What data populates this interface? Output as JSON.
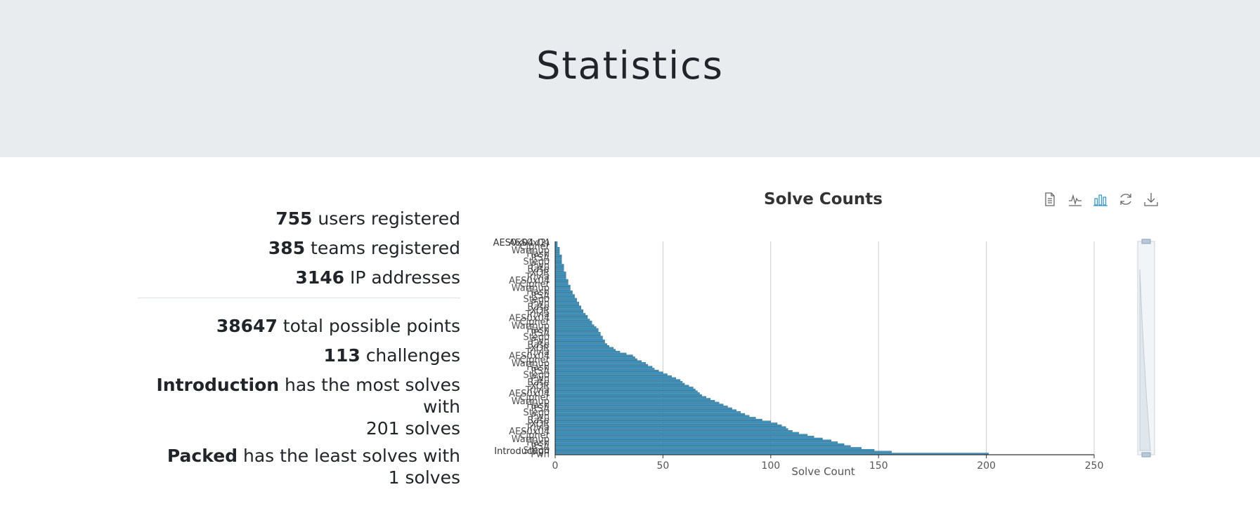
{
  "header": {
    "title": "Statistics"
  },
  "stats": {
    "users": {
      "value": "755",
      "text": "users registered"
    },
    "teams": {
      "value": "385",
      "text": "teams registered"
    },
    "ips": {
      "value": "3146",
      "text": "IP addresses"
    },
    "points": {
      "value": "38647",
      "text": "total possible points"
    },
    "challenges": {
      "value": "113",
      "text": "challenges"
    },
    "most_solved": {
      "name": "Introduction",
      "text": "has the most solves with",
      "count_text": "201 solves"
    },
    "least_solved": {
      "name": "Packed",
      "text": "has the least solves with",
      "count_text": "1 solves"
    }
  },
  "toolbox": {
    "icons": [
      "data-view-icon",
      "line-chart-icon",
      "bar-chart-icon",
      "restore-icon",
      "download-icon"
    ],
    "accent": "#3e98c5"
  },
  "chart_data": {
    "type": "bar",
    "orientation": "horizontal",
    "title": "Solve Counts",
    "xlabel": "Solve Count",
    "xlim": [
      0,
      250
    ],
    "xticks": [
      0,
      50,
      100,
      150,
      200,
      250
    ],
    "bar_color": "#3e98c5",
    "top_category_label": "AES0x04 (2)",
    "bottom_category_label": "Introduction",
    "values": [
      1,
      1,
      1,
      2,
      2,
      2,
      2,
      3,
      3,
      3,
      3,
      3,
      4,
      4,
      4,
      4,
      5,
      5,
      5,
      5,
      6,
      6,
      6,
      7,
      7,
      7,
      8,
      8,
      9,
      9,
      10,
      10,
      11,
      11,
      12,
      12,
      13,
      13,
      14,
      15,
      15,
      16,
      17,
      17,
      18,
      19,
      20,
      20,
      21,
      21,
      22,
      22,
      23,
      23,
      24,
      25,
      27,
      28,
      30,
      33,
      36,
      37,
      38,
      40,
      42,
      43,
      45,
      46,
      48,
      50,
      52,
      54,
      56,
      58,
      59,
      60,
      62,
      64,
      65,
      66,
      67,
      68,
      70,
      72,
      74,
      76,
      78,
      80,
      82,
      84,
      86,
      88,
      90,
      93,
      96,
      100,
      103,
      105,
      107,
      108,
      110,
      113,
      117,
      120,
      124,
      128,
      131,
      134,
      137,
      142,
      148,
      156,
      201
    ]
  }
}
